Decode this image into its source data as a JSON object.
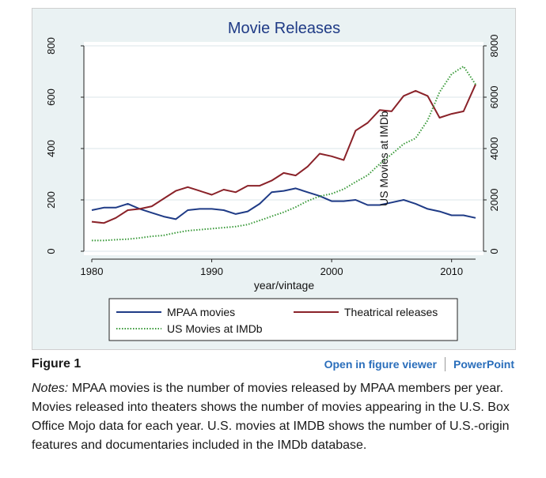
{
  "figure": {
    "label": "Figure 1",
    "links": [
      "Open in figure viewer",
      "PowerPoint"
    ],
    "notes_label": "Notes:",
    "notes_text": " MPAA movies is the number of movies released by MPAA members per year. Movies released into theaters shows the number of movies appearing in the U.S. Box Office Mojo data for each year. U.S. movies at IMDB shows the number of U.S.-origin features and documentaries included in the IMDb database."
  },
  "chart_data": {
    "type": "line",
    "title": "Movie Releases",
    "xlabel": "year/vintage",
    "ylabel_left": "",
    "ylabel_right": "US Movies at IMDb",
    "xlim": [
      1980,
      2012
    ],
    "ylim_left": [
      0,
      800
    ],
    "ylim_right": [
      0,
      8000
    ],
    "xticks": [
      1980,
      1990,
      2000,
      2010
    ],
    "yticks_left": [
      0,
      200,
      400,
      600,
      800
    ],
    "yticks_right": [
      0,
      2000,
      4000,
      6000,
      8000
    ],
    "grid": true,
    "legend": "bottom",
    "colors": {
      "mpaa": "#1f3b86",
      "theatrical": "#8a2229",
      "imdb": "#3a9a3a",
      "background": "#eaf2f3"
    },
    "series": [
      {
        "name": "MPAA movies",
        "axis": "left",
        "x": [
          1980,
          1981,
          1982,
          1983,
          1984,
          1985,
          1986,
          1987,
          1988,
          1989,
          1990,
          1991,
          1992,
          1993,
          1994,
          1995,
          1996,
          1997,
          1998,
          1999,
          2000,
          2001,
          2002,
          2003,
          2004,
          2005,
          2006,
          2007,
          2008,
          2009,
          2010,
          2011,
          2012
        ],
        "values": [
          160,
          170,
          170,
          185,
          165,
          150,
          135,
          125,
          160,
          165,
          165,
          160,
          145,
          155,
          185,
          230,
          235,
          245,
          230,
          215,
          195,
          195,
          200,
          180,
          180,
          190,
          200,
          185,
          165,
          155,
          140,
          140,
          130
        ]
      },
      {
        "name": "Theatrical releases",
        "axis": "left",
        "x": [
          1980,
          1981,
          1982,
          1983,
          1984,
          1985,
          1986,
          1987,
          1988,
          1989,
          1990,
          1991,
          1992,
          1993,
          1994,
          1995,
          1996,
          1997,
          1998,
          1999,
          2000,
          2001,
          2002,
          2003,
          2004,
          2005,
          2006,
          2007,
          2008,
          2009,
          2010,
          2011,
          2012
        ],
        "values": [
          115,
          110,
          130,
          160,
          165,
          175,
          205,
          235,
          250,
          235,
          220,
          240,
          230,
          255,
          255,
          275,
          305,
          295,
          330,
          380,
          370,
          355,
          470,
          500,
          550,
          545,
          605,
          625,
          605,
          520,
          535,
          545,
          650
        ]
      },
      {
        "name": "US Movies at IMDb",
        "axis": "right",
        "x": [
          1980,
          1981,
          1982,
          1983,
          1984,
          1985,
          1986,
          1987,
          1988,
          1989,
          1990,
          1991,
          1992,
          1993,
          1994,
          1995,
          1996,
          1997,
          1998,
          1999,
          2000,
          2001,
          2002,
          2003,
          2004,
          2005,
          2006,
          2007,
          2008,
          2009,
          2010,
          2011,
          2012
        ],
        "values": [
          420,
          420,
          450,
          470,
          520,
          580,
          620,
          720,
          800,
          840,
          880,
          920,
          960,
          1040,
          1200,
          1360,
          1520,
          1720,
          1960,
          2140,
          2240,
          2420,
          2700,
          2960,
          3400,
          3780,
          4180,
          4400,
          5100,
          6200,
          6900,
          7200,
          6500
        ]
      }
    ]
  }
}
